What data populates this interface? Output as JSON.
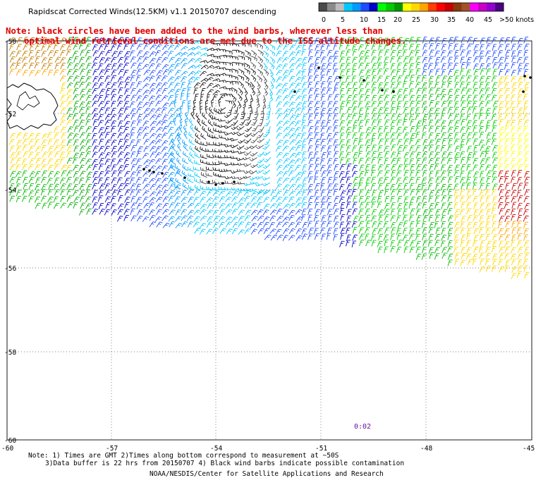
{
  "title": "Rapidscat Corrected Winds(12.5KM) v1.1 20150707 descending",
  "note_lines": [
    "Note: black circles have been added to the wind barbs, wherever less than",
    "optimal wind retrieval conditions are met due to the ISS altitude changes."
  ],
  "legend": {
    "colors": [
      "#4a4a4a",
      "#8a8a8a",
      "#bdbdbd",
      "#00c8ff",
      "#0099ff",
      "#1e4dff",
      "#0000c8",
      "#00ff00",
      "#00cc00",
      "#009900",
      "#ffff00",
      "#ffd700",
      "#ffa500",
      "#ff4000",
      "#ff0000",
      "#c80000",
      "#8b3a0a",
      "#a0522d",
      "#ff00ff",
      "#c800c8",
      "#9400d3",
      "#4b0082"
    ],
    "tick_labels": [
      "0",
      "5",
      "10",
      "15",
      "20",
      "25",
      "30",
      "35",
      "40",
      "45",
      ">50 knots"
    ]
  },
  "axes": {
    "lat_labels": [
      "-50",
      "-52",
      "-54",
      "-56",
      "-58",
      "-60"
    ],
    "lon_labels": [
      "-60",
      "-57",
      "-54",
      "-51",
      "-48",
      "-45"
    ]
  },
  "time_label": "0:02",
  "footer": {
    "line1": "Note: 1) Times are GMT 2)Times along bottom correspond to measurement at ~50S",
    "line2": "3)Data buffer is 22 hrs from 20150707 4) Black wind barbs indicate possible contamination",
    "line3": "NOAA/NESDIS/Center for Satellite Applications and Research"
  }
}
